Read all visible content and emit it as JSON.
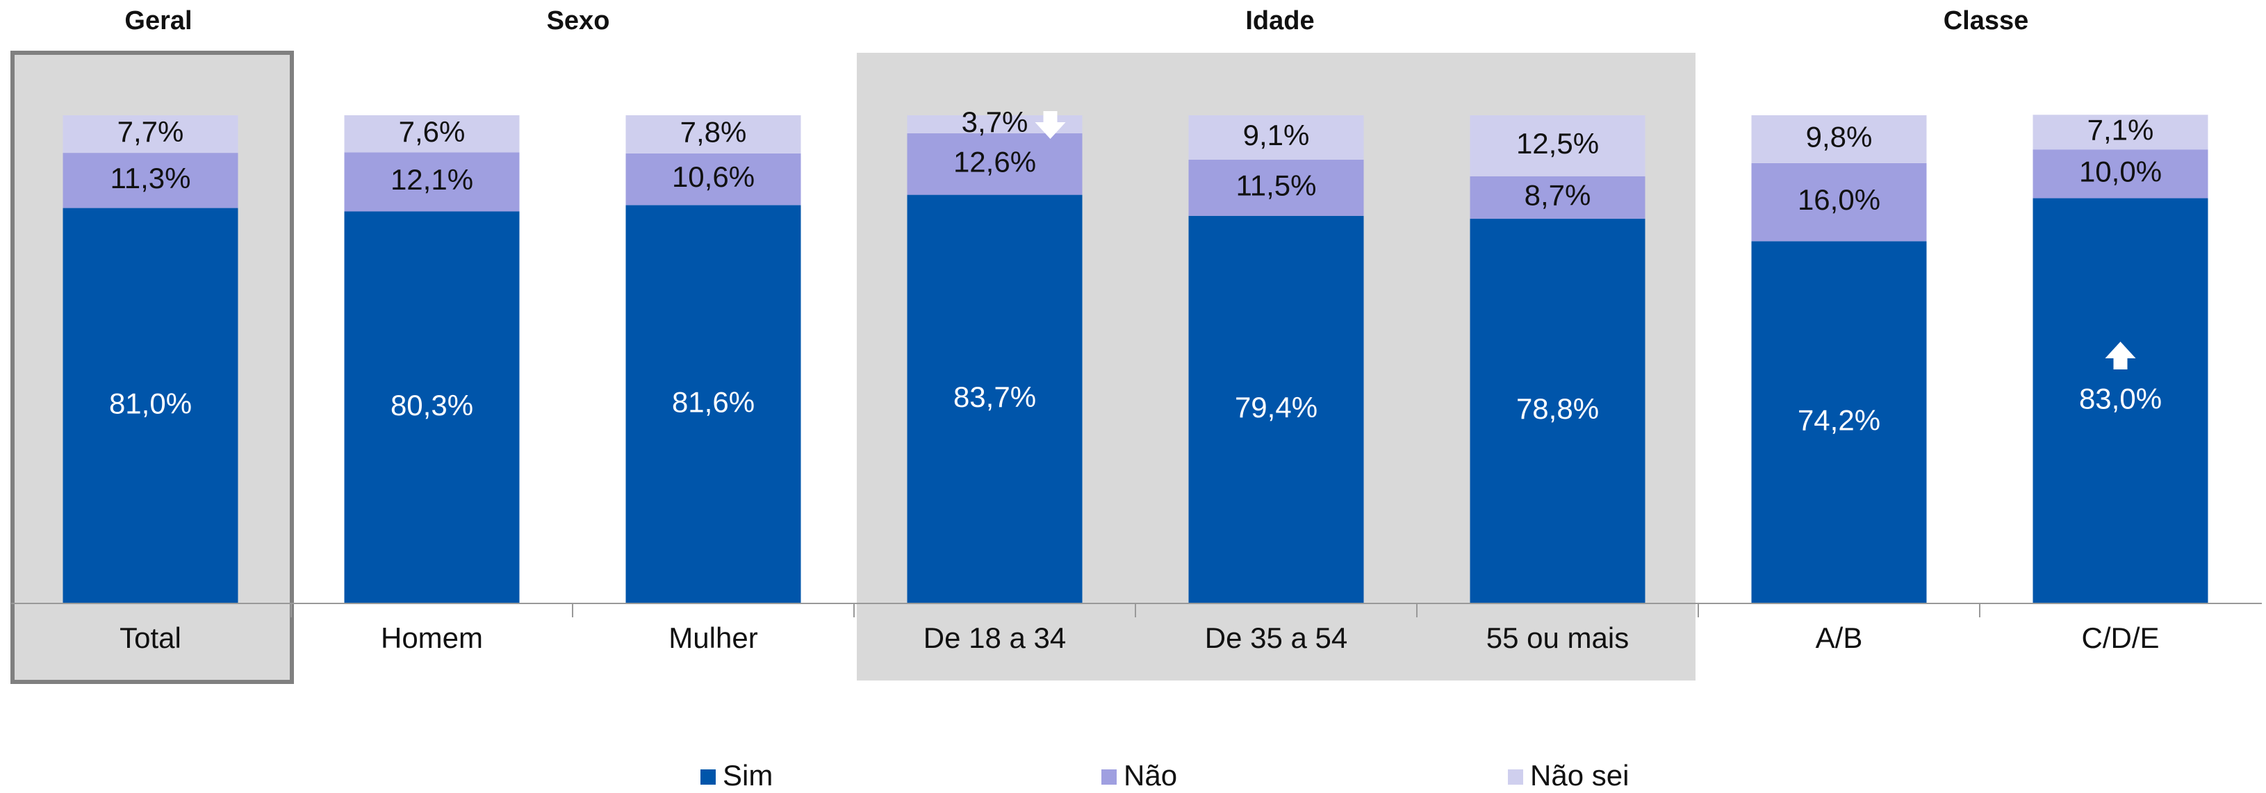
{
  "chart_data": {
    "type": "stacked-bar",
    "groups": [
      "Geral",
      "Sexo",
      "Idade",
      "Classe"
    ],
    "categories": [
      "Total",
      "Homem",
      "Mulher",
      "De 18 a 34",
      "De 35 a 54",
      "55 ou mais",
      "A/B",
      "C/D/E"
    ],
    "ylim": [
      0,
      100
    ],
    "legend": "bottom",
    "series": [
      {
        "name": "Sim",
        "color": "#0055aa",
        "label_color": "#ffffff",
        "values": [
          81.0,
          80.3,
          81.6,
          83.7,
          79.4,
          78.8,
          74.2,
          83.0
        ],
        "value_labels": [
          "81,0%",
          "80,3%",
          "81,6%",
          "83,7%",
          "79,4%",
          "78,8%",
          "74,2%",
          "83,0%"
        ]
      },
      {
        "name": "Não",
        "color": "#9f9fe0",
        "label_color": "#111111",
        "values": [
          11.3,
          12.1,
          10.6,
          12.6,
          11.5,
          8.7,
          16.0,
          10.0
        ],
        "value_labels": [
          "11,3%",
          "12,1%",
          "10,6%",
          "12,6%",
          "11,5%",
          "8,7%",
          "16,0%",
          "10,0%"
        ]
      },
      {
        "name": "Não sei",
        "color": "#cfcfee",
        "label_color": "#111111",
        "values": [
          7.7,
          7.6,
          7.8,
          3.7,
          9.1,
          12.5,
          9.8,
          7.1
        ],
        "value_labels": [
          "7,7%",
          "7,6%",
          "7,8%",
          "3,7%",
          "9,1%",
          "12,5%",
          "9,8%",
          "7,1%"
        ]
      }
    ]
  }
}
